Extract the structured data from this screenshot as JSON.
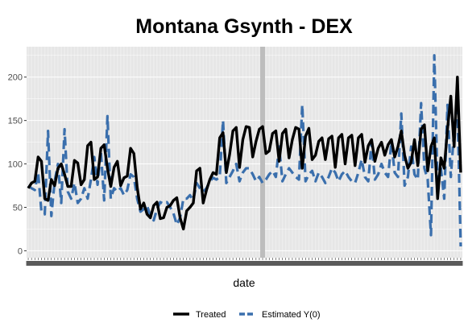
{
  "chart_data": {
    "type": "line",
    "title": "Montana Gsynth - DEX",
    "xlabel": "date",
    "ylabel": "",
    "ylim": [
      -8,
      235
    ],
    "y_ticks": [
      0,
      50,
      100,
      150,
      200
    ],
    "x_count": 132,
    "treatment_index": 71,
    "grid": true,
    "legend_position": "bottom",
    "series": [
      {
        "name": "Treated",
        "color": "#000000",
        "dash": "solid",
        "values": [
          72,
          78,
          80,
          108,
          103,
          60,
          58,
          82,
          75,
          95,
          100,
          88,
          74,
          74,
          104,
          101,
          76,
          82,
          121,
          125,
          82,
          85,
          118,
          122,
          95,
          74,
          96,
          103,
          75,
          84,
          86,
          118,
          112,
          73,
          48,
          55,
          42,
          38,
          52,
          56,
          37,
          38,
          50,
          52,
          58,
          61,
          38,
          25,
          46,
          50,
          55,
          92,
          95,
          55,
          70,
          82,
          90,
          88,
          130,
          136,
          90,
          111,
          138,
          142,
          96,
          128,
          143,
          142,
          108,
          126,
          140,
          143,
          112,
          115,
          135,
          138,
          103,
          135,
          140,
          107,
          128,
          142,
          140,
          95,
          132,
          141,
          105,
          110,
          126,
          130,
          105,
          129,
          132,
          96,
          130,
          134,
          100,
          130,
          133,
          98,
          130,
          134,
          102,
          121,
          128,
          103,
          118,
          125,
          110,
          122,
          128,
          108,
          120,
          138,
          110,
          95,
          102,
          128,
          98,
          140,
          145,
          92,
          120,
          130,
          60,
          107,
          95,
          140,
          178,
          120,
          200,
          90
        ]
      },
      {
        "name": "Estimated Y(0)",
        "color": "#3a6fad",
        "dash": "dashed",
        "values": [
          75,
          72,
          70,
          90,
          45,
          42,
          138,
          40,
          80,
          100,
          55,
          140,
          68,
          60,
          78,
          55,
          60,
          72,
          60,
          82,
          108,
          76,
          115,
          58,
          155,
          60,
          72,
          68,
          72,
          64,
          70,
          88,
          85,
          60,
          45,
          48,
          52,
          40,
          35,
          48,
          56,
          54,
          56,
          50,
          43,
          30,
          38,
          60,
          60,
          64,
          58,
          78,
          72,
          68,
          72,
          80,
          84,
          82,
          85,
          150,
          78,
          85,
          92,
          100,
          80,
          90,
          95,
          95,
          88,
          80,
          85,
          78,
          82,
          88,
          92,
          85,
          120,
          80,
          88,
          95,
          90,
          85,
          82,
          168,
          80,
          88,
          92,
          80,
          90,
          85,
          78,
          85,
          95,
          90,
          80,
          88,
          92,
          85,
          80,
          78,
          90,
          105,
          85,
          80,
          125,
          82,
          88,
          100,
          90,
          85,
          125,
          90,
          85,
          158,
          75,
          85,
          120,
          88,
          82,
          170,
          95,
          82,
          18,
          225,
          75,
          95,
          60,
          168,
          85,
          138,
          170,
          5
        ]
      }
    ]
  }
}
